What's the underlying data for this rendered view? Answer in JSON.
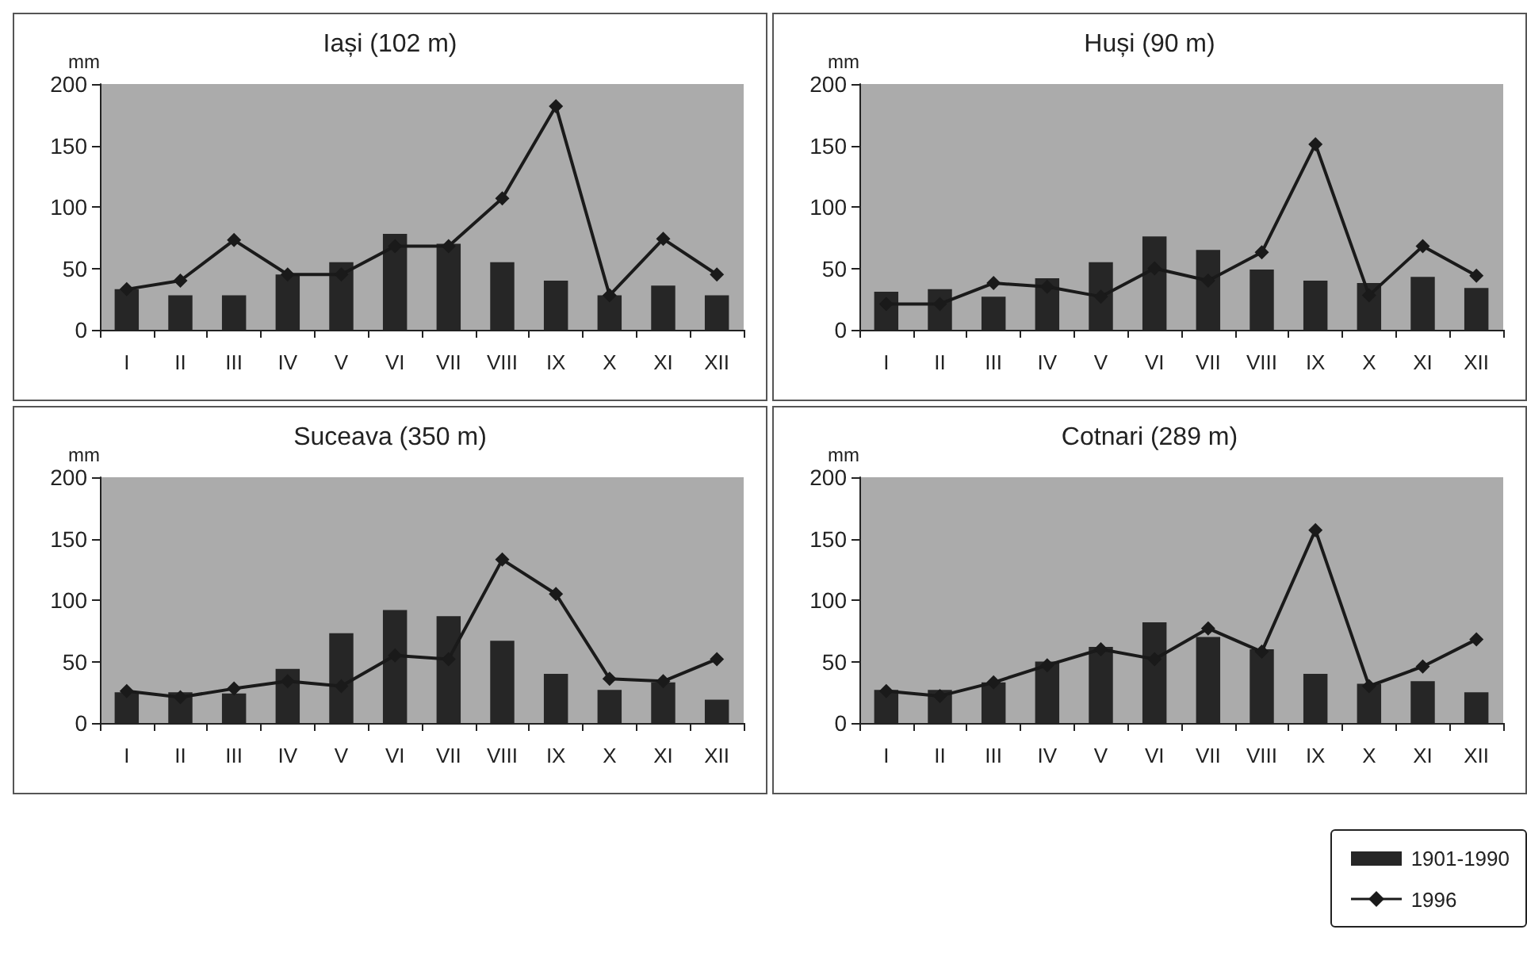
{
  "chart_data": [
    {
      "type": "bar",
      "title": "Iași (102 m)",
      "ylabel": "mm",
      "categories": [
        "I",
        "II",
        "III",
        "IV",
        "V",
        "VI",
        "VII",
        "VIII",
        "IX",
        "X",
        "XI",
        "XII"
      ],
      "ylim": [
        0,
        200
      ],
      "yticks": [
        0,
        50,
        100,
        150,
        200
      ],
      "grid": false,
      "legend": "bottom right",
      "marker": "diamond",
      "series": [
        {
          "name": "1901-1990",
          "color": "#262626",
          "values": [
            33,
            28,
            28,
            45,
            55,
            78,
            70,
            55,
            40,
            28,
            36,
            28
          ]
        },
        {
          "name": "1996",
          "type": "line",
          "color": "#1a1a1a",
          "values": [
            33,
            40,
            73,
            45,
            45,
            68,
            68,
            107,
            182,
            28,
            74,
            45
          ]
        }
      ]
    },
    {
      "type": "bar",
      "title": "Huși (90 m)",
      "ylabel": "mm",
      "categories": [
        "I",
        "II",
        "III",
        "IV",
        "V",
        "VI",
        "VII",
        "VIII",
        "IX",
        "X",
        "XI",
        "XII"
      ],
      "ylim": [
        0,
        200
      ],
      "yticks": [
        0,
        50,
        100,
        150,
        200
      ],
      "grid": false,
      "marker": "diamond",
      "series": [
        {
          "color": "#262626",
          "values": [
            31,
            33,
            27,
            42,
            55,
            76,
            65,
            49,
            40,
            38,
            43,
            34
          ]
        },
        {
          "type": "line",
          "color": "#1a1a1a",
          "values": [
            21,
            21,
            38,
            35,
            27,
            50,
            40,
            63,
            151,
            28,
            68,
            44
          ]
        }
      ]
    },
    {
      "type": "bar",
      "title": "Suceava (350 m)",
      "ylabel": "mm",
      "categories": [
        "I",
        "II",
        "III",
        "IV",
        "V",
        "VI",
        "VII",
        "VIII",
        "IX",
        "X",
        "XI",
        "XII"
      ],
      "ylim": [
        0,
        200
      ],
      "yticks": [
        0,
        50,
        100,
        150,
        200
      ],
      "grid": false,
      "marker": "diamond",
      "series": [
        {
          "color": "#262626",
          "values": [
            25,
            25,
            24,
            44,
            73,
            92,
            87,
            67,
            40,
            27,
            33,
            19
          ]
        },
        {
          "type": "line",
          "color": "#1a1a1a",
          "values": [
            26,
            21,
            28,
            34,
            30,
            55,
            52,
            133,
            105,
            36,
            34,
            52
          ]
        }
      ]
    },
    {
      "type": "bar",
      "title": "Cotnari (289 m)",
      "ylabel": "mm",
      "categories": [
        "I",
        "II",
        "III",
        "IV",
        "V",
        "VI",
        "VII",
        "VIII",
        "IX",
        "X",
        "XI",
        "XII"
      ],
      "ylim": [
        0,
        200
      ],
      "yticks": [
        0,
        50,
        100,
        150,
        200
      ],
      "grid": false,
      "marker": "diamond",
      "series": [
        {
          "color": "#262626",
          "values": [
            27,
            27,
            33,
            50,
            62,
            82,
            70,
            60,
            40,
            32,
            34,
            25
          ]
        },
        {
          "type": "line",
          "color": "#1a1a1a",
          "values": [
            26,
            22,
            33,
            47,
            60,
            52,
            77,
            58,
            157,
            30,
            46,
            68
          ]
        }
      ]
    }
  ]
}
